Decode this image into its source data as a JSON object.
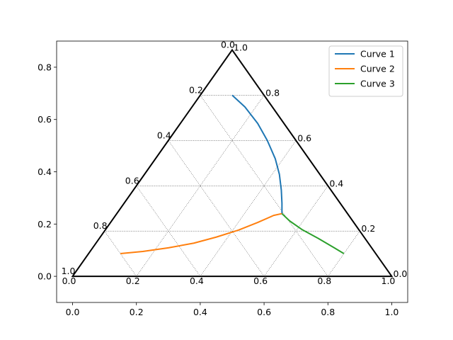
{
  "chart_data": {
    "type": "line",
    "subtype": "ternary",
    "title": "",
    "xlabel": "",
    "ylabel": "",
    "xlim": [
      -0.05,
      1.05
    ],
    "ylim": [
      -0.1,
      0.9
    ],
    "x_ticks": [
      "0.0",
      "0.2",
      "0.4",
      "0.6",
      "0.8",
      "1.0"
    ],
    "y_ticks": [
      "0.0",
      "0.2",
      "0.4",
      "0.6",
      "0.8"
    ],
    "grid": "dotted ternary grid at 0.2 steps",
    "triangle_vertices": [
      [
        0,
        0
      ],
      [
        1,
        0
      ],
      [
        0.5,
        0.866
      ]
    ],
    "left_edge_labels": [
      "1.0",
      "0.8",
      "0.6",
      "0.4",
      "0.2",
      "0.0"
    ],
    "right_edge_labels": [
      "0.0",
      "0.2",
      "0.4",
      "0.6",
      "0.8",
      "1.0"
    ],
    "bottom_edge_labels": [
      "0.0",
      "0.2",
      "0.4",
      "0.6",
      "0.8",
      "1.0"
    ],
    "legend": {
      "position": "upper-right"
    },
    "series": [
      {
        "name": "Curve 1",
        "color": "#1f77b4",
        "x": [
          0.5,
          0.54,
          0.58,
          0.61,
          0.635,
          0.648,
          0.654,
          0.656,
          0.656
        ],
        "y": [
          0.693,
          0.648,
          0.585,
          0.52,
          0.45,
          0.39,
          0.33,
          0.28,
          0.24
        ]
      },
      {
        "name": "Curve 2",
        "color": "#ff7f0e",
        "x": [
          0.15,
          0.22,
          0.3,
          0.38,
          0.45,
          0.52,
          0.58,
          0.63,
          0.656
        ],
        "y": [
          0.087,
          0.095,
          0.109,
          0.127,
          0.15,
          0.177,
          0.206,
          0.233,
          0.24
        ]
      },
      {
        "name": "Curve 3",
        "color": "#2ca02c",
        "x": [
          0.656,
          0.68,
          0.72,
          0.77,
          0.82,
          0.85
        ],
        "y": [
          0.24,
          0.212,
          0.178,
          0.145,
          0.109,
          0.087
        ]
      }
    ]
  }
}
